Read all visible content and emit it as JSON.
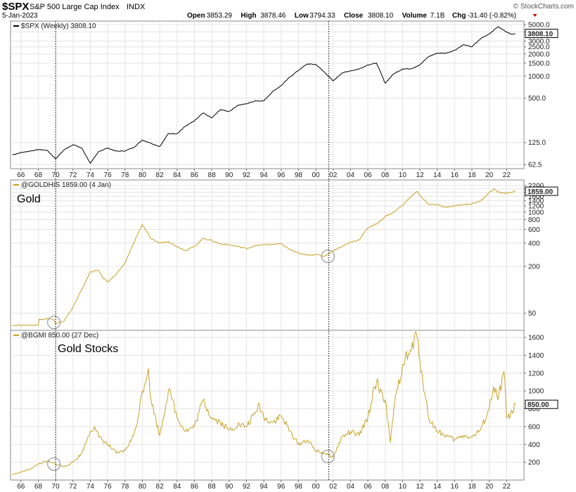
{
  "header": {
    "symbol": "$SPX",
    "name": "S&P 500 Large Cap Index",
    "exchange": "INDX",
    "watermark": "© StockCharts.com",
    "date": "5-Jan-2023",
    "ohlc": [
      {
        "label": "Open",
        "value": "3853.29"
      },
      {
        "label": "High",
        "value": "3878.46"
      },
      {
        "label": "Low",
        "value": "3794.33"
      },
      {
        "label": "Close",
        "value": "3808.10"
      },
      {
        "label": "Volume",
        "value": "7.1B"
      },
      {
        "label": "Chg",
        "value": "-31.40 (-0.82%)"
      }
    ]
  },
  "colors": {
    "spx": "#000000",
    "gold": "#c9a227",
    "grid": "#c0c0c0",
    "badge_border": "#000000"
  },
  "chart_data": [
    {
      "type": "line",
      "legend": "$SPX (Weekly) 3808.10",
      "scale": "log",
      "last_value_label": "3808.10",
      "y_ticks": [
        {
          "v": 5000,
          "label": "5000.0"
        },
        {
          "v": 4000,
          "label": "4000.0"
        },
        {
          "v": 3000,
          "label": "3000.0"
        },
        {
          "v": 2500,
          "label": "2500.0"
        },
        {
          "v": 2000,
          "label": "2000.0"
        },
        {
          "v": 1500,
          "label": "1500.0"
        },
        {
          "v": 1000,
          "label": "1000.0"
        },
        {
          "v": 500,
          "label": "500.0"
        },
        {
          "v": 125,
          "label": "125.0"
        },
        {
          "v": 62.5,
          "label": "62.5"
        }
      ],
      "ylim": [
        55,
        5600
      ],
      "x": [
        1965,
        1966,
        1968,
        1969,
        1970,
        1971,
        1972,
        1973,
        1974,
        1975,
        1976,
        1977,
        1978,
        1979,
        1980,
        1981,
        1982,
        1983,
        1984,
        1985,
        1986,
        1987,
        1988,
        1989,
        1990,
        1991,
        1992,
        1993,
        1994,
        1995,
        1996,
        1997,
        1998,
        1999,
        2000,
        2001,
        2002,
        2003,
        2004,
        2005,
        2006,
        2007,
        2008,
        2009,
        2010,
        2011,
        2012,
        2013,
        2014,
        2015,
        2016,
        2017,
        2018,
        2019,
        2020,
        2021,
        2022,
        2022.5,
        2023
      ],
      "values": [
        85,
        91,
        100,
        98,
        75,
        100,
        117,
        105,
        65,
        95,
        105,
        95,
        96,
        107,
        135,
        122,
        110,
        165,
        165,
        210,
        245,
        315,
        270,
        350,
        330,
        400,
        420,
        460,
        460,
        615,
        740,
        970,
        1200,
        1460,
        1440,
        1130,
        860,
        1100,
        1180,
        1250,
        1420,
        1500,
        800,
        1080,
        1250,
        1260,
        1420,
        1840,
        2050,
        2050,
        2240,
        2670,
        2500,
        3230,
        3750,
        4700,
        4000,
        3700,
        3808
      ]
    },
    {
      "type": "line",
      "legend": "@GOLDHIS 1859.00 (4 Jan)",
      "title": "Gold",
      "scale": "log",
      "last_value_label": "1859.00",
      "y_ticks": [
        {
          "v": 2200,
          "label": "2200"
        },
        {
          "v": 2000,
          "label": "2000"
        },
        {
          "v": 1800,
          "label": "1800"
        },
        {
          "v": 1600,
          "label": "1600"
        },
        {
          "v": 1400,
          "label": "1400"
        },
        {
          "v": 1200,
          "label": "1200"
        },
        {
          "v": 1000,
          "label": "1000"
        },
        {
          "v": 800,
          "label": "800"
        },
        {
          "v": 600,
          "label": "600"
        },
        {
          "v": 400,
          "label": "400"
        },
        {
          "v": 200,
          "label": "200"
        },
        {
          "v": 50,
          "label": "50"
        }
      ],
      "ylim": [
        30,
        2600
      ],
      "x": [
        1965,
        1968,
        1968.1,
        1969.7,
        1970,
        1971,
        1972,
        1973,
        1974,
        1974.9,
        1975.5,
        1976,
        1977,
        1978,
        1979,
        1980,
        1981,
        1982,
        1983,
        1984,
        1985,
        1986,
        1987,
        1988,
        1989,
        1990,
        1991,
        1992,
        1993,
        1994,
        1995,
        1996,
        1997,
        1998,
        1999,
        2000,
        2001,
        2002,
        2003,
        2004,
        2005,
        2006,
        2007,
        2008,
        2009,
        2010,
        2011,
        2011.7,
        2012,
        2013,
        2014,
        2015,
        2016,
        2017,
        2018,
        2019,
        2020,
        2020.6,
        2021,
        2022,
        2023
      ],
      "values": [
        35,
        35,
        42,
        42,
        36,
        40,
        60,
        100,
        170,
        180,
        140,
        125,
        160,
        220,
        400,
        700,
        450,
        400,
        420,
        360,
        320,
        360,
        460,
        430,
        390,
        380,
        360,
        340,
        370,
        380,
        385,
        390,
        330,
        295,
        280,
        285,
        270,
        320,
        360,
        410,
        440,
        630,
        700,
        880,
        1000,
        1230,
        1600,
        1850,
        1650,
        1250,
        1250,
        1150,
        1200,
        1250,
        1280,
        1400,
        1800,
        2000,
        1800,
        1750,
        1859
      ]
    },
    {
      "type": "line",
      "legend": "@BGMI 850.00 (27 Dec)",
      "title": "Gold Stocks",
      "scale": "linear",
      "last_value_label": "850.00",
      "y_ticks": [
        {
          "v": 1600,
          "label": "1600"
        },
        {
          "v": 1400,
          "label": "1400"
        },
        {
          "v": 1200,
          "label": "1200"
        },
        {
          "v": 1000,
          "label": "1000"
        },
        {
          "v": 800,
          "label": "800"
        },
        {
          "v": 600,
          "label": "600"
        },
        {
          "v": 400,
          "label": "400"
        },
        {
          "v": 200,
          "label": "200"
        }
      ],
      "ylim": [
        0,
        1680
      ],
      "x": [
        1965,
        1966,
        1967,
        1968,
        1969,
        1970,
        1971,
        1972,
        1973,
        1974,
        1974.5,
        1975,
        1976,
        1977,
        1978,
        1979,
        1979.5,
        1980,
        1980.7,
        1981,
        1982,
        1983,
        1983.5,
        1984,
        1985,
        1986,
        1987,
        1988,
        1989,
        1990,
        1991,
        1992,
        1993,
        1993.5,
        1994,
        1995,
        1996,
        1997,
        1998,
        1999,
        2000,
        2001,
        2002,
        2003,
        2004,
        2005,
        2006,
        2006.8,
        2007,
        2008,
        2008.6,
        2009,
        2010,
        2011,
        2011.6,
        2012,
        2013,
        2014,
        2015,
        2016,
        2017,
        2018,
        2019,
        2020,
        2020.5,
        2021,
        2021.7,
        2022,
        2022.7,
        2023
      ],
      "values": [
        60,
        90,
        120,
        180,
        210,
        180,
        150,
        200,
        300,
        550,
        600,
        480,
        400,
        300,
        330,
        500,
        700,
        1000,
        1250,
        900,
        500,
        1000,
        900,
        700,
        550,
        600,
        900,
        700,
        650,
        560,
        620,
        600,
        750,
        850,
        700,
        650,
        720,
        550,
        400,
        450,
        330,
        300,
        260,
        480,
        540,
        500,
        700,
        1050,
        1100,
        900,
        420,
        800,
        1300,
        1450,
        1650,
        1350,
        700,
        550,
        500,
        450,
        500,
        480,
        560,
        800,
        1050,
        900,
        1220,
        700,
        750,
        850
      ]
    }
  ],
  "x_axis": {
    "tick_years": [
      1966,
      1968,
      1970,
      1972,
      1974,
      1976,
      1978,
      1980,
      1982,
      1984,
      1986,
      1988,
      1990,
      1992,
      1994,
      1996,
      1998,
      2000,
      2002,
      2004,
      2006,
      2008,
      2010,
      2012,
      2014,
      2016,
      2018,
      2020,
      2022
    ],
    "tick_labels": [
      "66",
      "68",
      "70",
      "72",
      "74",
      "76",
      "78",
      "80",
      "82",
      "84",
      "86",
      "88",
      "90",
      "92",
      "94",
      "96",
      "98",
      "00",
      "02",
      "04",
      "06",
      "08",
      "10",
      "12",
      "14",
      "16",
      "18",
      "20",
      "22"
    ],
    "vertical_markers": [
      1970,
      2001.5
    ],
    "circles": [
      {
        "panel": 1,
        "year": 1969.8,
        "value": 38
      },
      {
        "panel": 1,
        "year": 2001.4,
        "value": 270
      },
      {
        "panel": 2,
        "year": 1969.8,
        "value": 180
      },
      {
        "panel": 2,
        "year": 2001.4,
        "value": 265
      }
    ]
  }
}
